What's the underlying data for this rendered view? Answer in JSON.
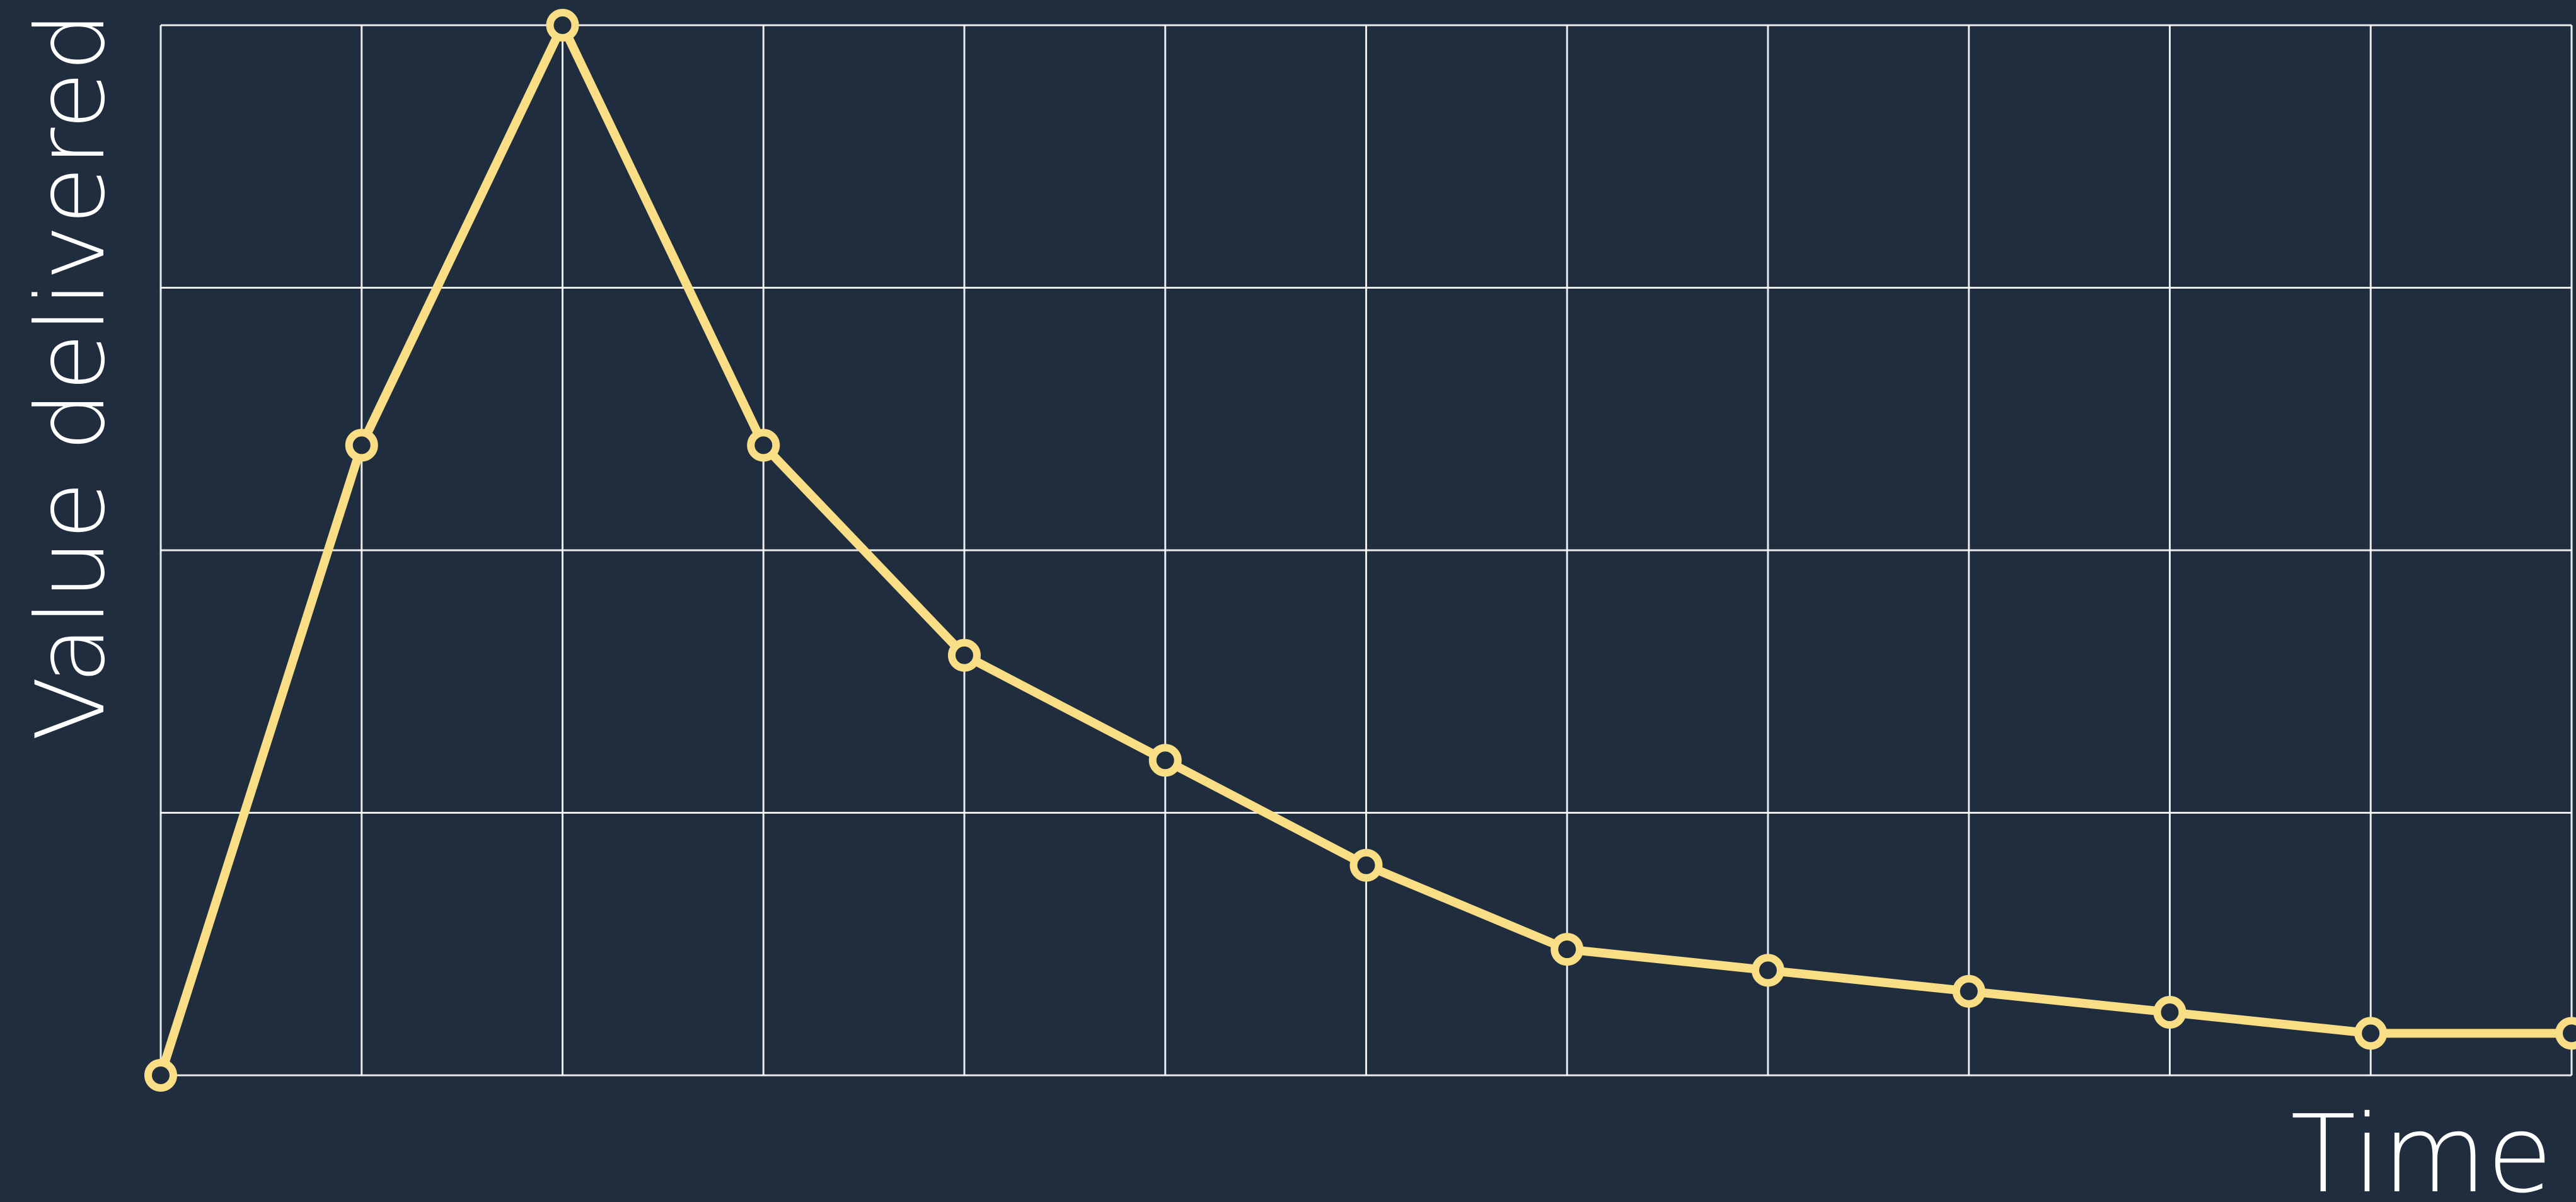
{
  "chart_data": {
    "type": "line",
    "title": "",
    "xlabel": "Time",
    "ylabel": "Value delivered",
    "x": [
      0,
      1,
      2,
      3,
      4,
      5,
      6,
      7,
      8,
      9,
      10,
      11,
      12
    ],
    "xlim": [
      0,
      12
    ],
    "ylim": [
      0,
      100
    ],
    "grid": true,
    "x_gridlines": 12,
    "y_gridlines": 4,
    "series": [
      {
        "values": [
          0,
          60,
          100,
          60,
          40,
          30,
          20,
          12,
          10,
          8,
          6,
          4,
          4
        ],
        "color": "#f9de86",
        "marker": "circle"
      }
    ]
  },
  "colors": {
    "background": "#1f2d3e",
    "grid": "#ffffff",
    "text": "#ffffff",
    "series": "#f9de86"
  }
}
